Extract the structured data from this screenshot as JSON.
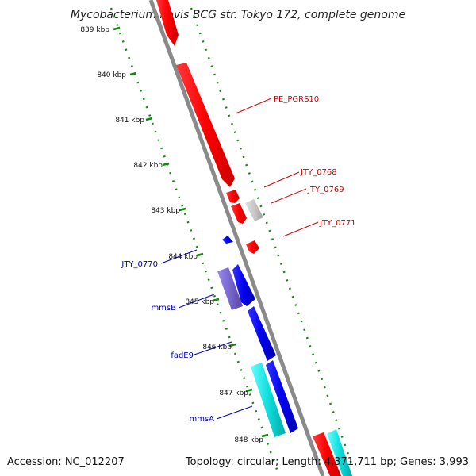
{
  "title": "Mycobacterium bovis BCG str. Tokyo 172, complete genome",
  "footer": {
    "accession": "Accession: NC_012207",
    "summary": "Topology: circular; Length: 4,371,711 bp; Genes: 3,993"
  },
  "colors": {
    "forward": "#ff0000",
    "reverse": "#0000ee",
    "pseudo": "#c8c8c8",
    "operon_purple": "#7766cc",
    "operon_cyan": "#11dddd",
    "backbone": "#8a8a8a",
    "tick": "#118811"
  },
  "ticks": [
    "839 kbp",
    "840 kbp",
    "841 kbp",
    "842 kbp",
    "843 kbp",
    "844 kbp",
    "845 kbp",
    "846 kbp",
    "847 kbp",
    "848 kbp"
  ],
  "gene_labels": {
    "pe_pgrs10": "PE_PGRS10",
    "jty_0768": "JTY_0768",
    "jty_0769": "JTY_0769",
    "jty_0771": "JTY_0771",
    "jty_0770": "JTY_0770",
    "mmsB": "mmsB",
    "fadE9": "fadE9",
    "mmsA": "mmsA"
  }
}
